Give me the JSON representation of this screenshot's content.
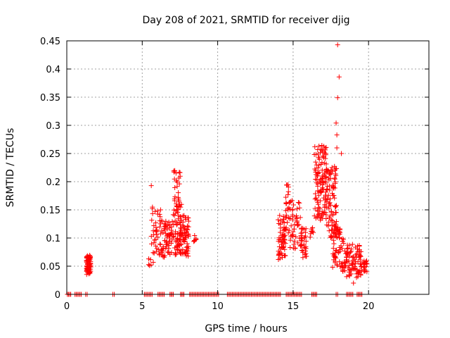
{
  "chart_data": {
    "type": "scatter",
    "title": "Day 208 of 2021, SRMTID for receiver djig",
    "xlabel": "GPS time / hours",
    "ylabel": "SRMTID / TECUs",
    "xlim": [
      0,
      24
    ],
    "ylim": [
      0,
      0.45
    ],
    "xticks": [
      0,
      5,
      10,
      15,
      20
    ],
    "xtick_labels": [
      "0",
      "5",
      "10",
      "15",
      "20"
    ],
    "yticks": [
      0,
      0.05,
      0.1,
      0.15,
      0.2,
      0.25,
      0.3,
      0.35,
      0.4,
      0.45
    ],
    "ytick_labels": [
      "0",
      "0.05",
      "0.1",
      "0.15",
      "0.2",
      "0.25",
      "0.3",
      "0.35",
      "0.4",
      "0.45"
    ],
    "grid": true,
    "marker": "+",
    "color": "#ff0000",
    "clusters": [
      {
        "name": "c1",
        "x_range": [
          1.3,
          1.6
        ],
        "y_range": [
          0.035,
          0.07
        ],
        "n": 70
      },
      {
        "name": "c2",
        "x_range": [
          5.4,
          5.8
        ],
        "y_range": [
          0.05,
          0.065
        ],
        "n": 6
      },
      {
        "name": "c3",
        "x_range": [
          5.6,
          6.3
        ],
        "y_range": [
          0.07,
          0.155
        ],
        "n": 45
      },
      {
        "name": "c4",
        "x_range": [
          6.3,
          7.0
        ],
        "y_range": [
          0.065,
          0.13
        ],
        "n": 60
      },
      {
        "name": "c5",
        "x_range": [
          7.0,
          7.6
        ],
        "y_range": [
          0.07,
          0.225
        ],
        "n": 80
      },
      {
        "name": "c6",
        "x_range": [
          7.5,
          8.1
        ],
        "y_range": [
          0.065,
          0.14
        ],
        "n": 70
      },
      {
        "name": "c7",
        "x_range": [
          8.4,
          8.6
        ],
        "y_range": [
          0.09,
          0.105
        ],
        "n": 8
      },
      {
        "name": "c8",
        "x_range": [
          14.0,
          14.5
        ],
        "y_range": [
          0.06,
          0.14
        ],
        "n": 60
      },
      {
        "name": "c9",
        "x_range": [
          14.5,
          14.8
        ],
        "y_range": [
          0.1,
          0.195
        ],
        "n": 30
      },
      {
        "name": "c10",
        "x_range": [
          14.8,
          15.5
        ],
        "y_range": [
          0.08,
          0.17
        ],
        "n": 40
      },
      {
        "name": "c11",
        "x_range": [
          15.5,
          15.9
        ],
        "y_range": [
          0.065,
          0.12
        ],
        "n": 35
      },
      {
        "name": "c12",
        "x_range": [
          16.1,
          16.4
        ],
        "y_range": [
          0.1,
          0.12
        ],
        "n": 8
      },
      {
        "name": "c13",
        "x_range": [
          16.4,
          17.2
        ],
        "y_range": [
          0.13,
          0.265
        ],
        "n": 120
      },
      {
        "name": "c14",
        "x_range": [
          17.2,
          17.9
        ],
        "y_range": [
          0.1,
          0.23
        ],
        "n": 90
      },
      {
        "name": "c15",
        "x_range": [
          17.6,
          18.5
        ],
        "y_range": [
          0.04,
          0.12
        ],
        "n": 70
      },
      {
        "name": "c16",
        "x_range": [
          18.5,
          19.5
        ],
        "y_range": [
          0.03,
          0.09
        ],
        "n": 80
      },
      {
        "name": "c17",
        "x_range": [
          19.5,
          19.9
        ],
        "y_range": [
          0.04,
          0.06
        ],
        "n": 20
      }
    ],
    "outliers": [
      {
        "x": 5.6,
        "y": 0.193
      },
      {
        "x": 17.95,
        "y": 0.443
      },
      {
        "x": 18.05,
        "y": 0.386
      },
      {
        "x": 17.95,
        "y": 0.349
      },
      {
        "x": 17.85,
        "y": 0.304
      },
      {
        "x": 17.9,
        "y": 0.283
      },
      {
        "x": 17.9,
        "y": 0.26
      },
      {
        "x": 18.2,
        "y": 0.25
      },
      {
        "x": 19.2,
        "y": 0.03
      },
      {
        "x": 19.0,
        "y": 0.02
      }
    ],
    "zero_x_ranges": [
      [
        0,
        0.3
      ],
      [
        0.5,
        1.0
      ],
      [
        1.2,
        1.4
      ],
      [
        3.0,
        3.2
      ],
      [
        5.1,
        5.7
      ],
      [
        6.0,
        6.5
      ],
      [
        6.8,
        7.1
      ],
      [
        7.5,
        7.8
      ],
      [
        8.1,
        10.1
      ],
      [
        10.6,
        14.2
      ],
      [
        14.5,
        15.6
      ],
      [
        16.2,
        16.6
      ],
      [
        17.8,
        18.0
      ],
      [
        18.5,
        19.0
      ],
      [
        19.2,
        19.6
      ]
    ]
  }
}
